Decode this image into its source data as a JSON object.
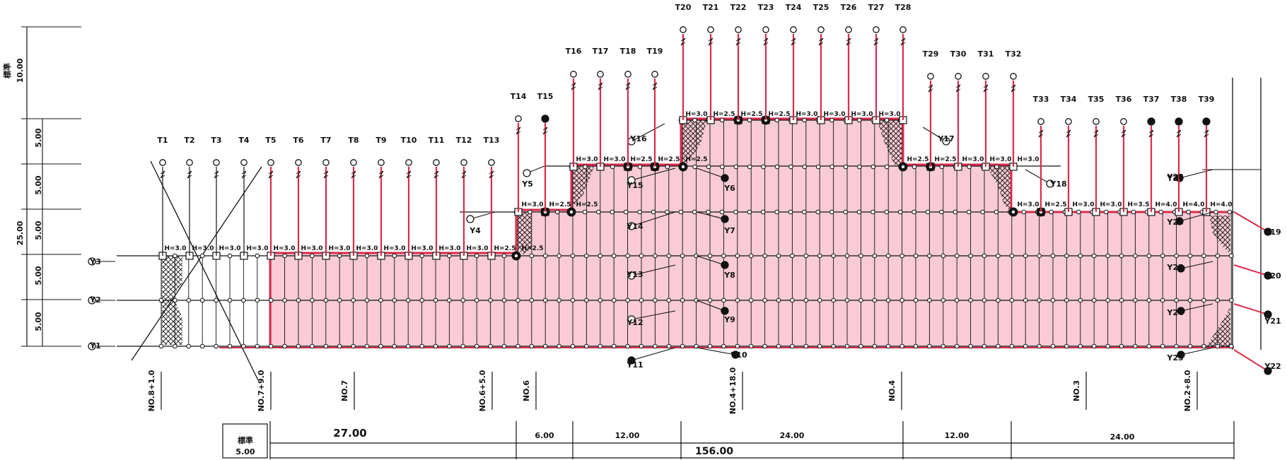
{
  "colors": {
    "ink": "#111111",
    "accent": "#d92b4a",
    "fill": "#f6b9c8"
  },
  "t_labels": [
    "T1",
    "T2",
    "T3",
    "T4",
    "T5",
    "T6",
    "T7",
    "T8",
    "T9",
    "T10",
    "T11",
    "T12",
    "T13",
    "T14",
    "T15",
    "T16",
    "T17",
    "T18",
    "T19",
    "T20",
    "T21",
    "T22",
    "T23",
    "T24",
    "T25",
    "T26",
    "T27",
    "T28",
    "T29",
    "T30",
    "T31",
    "T32",
    "T33",
    "T34",
    "T35",
    "T36",
    "T37",
    "T38",
    "T39"
  ],
  "y_labels": [
    "Y1",
    "Y2",
    "Y3",
    "Y4",
    "Y5",
    "Y6",
    "Y7",
    "Y8",
    "Y9",
    "Y10",
    "Y11",
    "Y12",
    "Y13",
    "Y14",
    "Y15",
    "Y16",
    "Y17",
    "Y18",
    "Y19",
    "Y20",
    "Y21",
    "Y22",
    "Y23",
    "Y24",
    "Y25",
    "Y26",
    "Y27",
    "Y28"
  ],
  "h_labels": [
    "H=3.0",
    "H=3.0",
    "H=3.0",
    "H=3.0",
    "H=3.0",
    "H=3.0",
    "H=3.0",
    "H=3.0",
    "H=3.0",
    "H=3.0",
    "H=3.0",
    "H=3.0",
    "H=2.5",
    "H=2.5",
    "H=3.0",
    "H=2.5",
    "H=2.5",
    "H=3.0",
    "H=3.0",
    "H=2.5",
    "H=2.5",
    "H=2.5",
    "H=3.0",
    "H=2.5",
    "H=2.5",
    "H=2.5",
    "H=3.0",
    "H=3.0",
    "H=3.0",
    "H=3.0",
    "H=2.5",
    "H=2.5",
    "H=3.0",
    "H=3.0",
    "H=3.0",
    "H=3.0",
    "H=2.5",
    "H=3.0",
    "H=3.0",
    "H=3.5",
    "H=4.0",
    "H=4.0",
    "H=4.0"
  ],
  "station_labels": [
    "NO.8+1.0",
    "NO.7+9.0",
    "NO.7",
    "NO.6+5.0",
    "NO.6",
    "NO.4+18.0",
    "NO.4",
    "NO.3",
    "NO.2+8.0"
  ],
  "left_dims": [
    "標準",
    "10.00",
    "5.00",
    "5.00",
    "5.00",
    "5.00",
    "5.00",
    "25.00"
  ],
  "bottom_dims": [
    "標準",
    "5.00",
    "27.00",
    "6.00",
    "12.00",
    "24.00",
    "12.00",
    "24.00",
    "156.00"
  ]
}
